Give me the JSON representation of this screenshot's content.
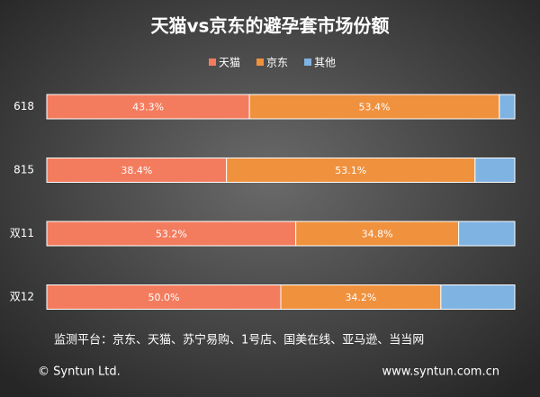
{
  "chart_data": {
    "type": "stacked-bar-horizontal",
    "title": "天猫vs京东的避孕套市场份额",
    "categories": [
      "618",
      "815",
      "双11",
      "双12"
    ],
    "series": [
      {
        "name": "天猫",
        "color": "#f47c5e",
        "values": [
          43.3,
          38.4,
          53.2,
          50.0
        ],
        "value_labels": [
          "43.3%",
          "38.4%",
          "53.2%",
          "50.0%"
        ]
      },
      {
        "name": "京东",
        "color": "#f0913d",
        "values": [
          53.4,
          53.1,
          34.8,
          34.2
        ],
        "value_labels": [
          "53.4%",
          "53.1%",
          "34.8%",
          "34.2%"
        ]
      },
      {
        "name": "其他",
        "color": "#7fb3e2",
        "values": [
          3.3,
          8.5,
          12.0,
          15.8
        ]
      }
    ],
    "xlim": [
      0,
      100
    ],
    "legend": "top",
    "source": "监测平台：京东、天猫、苏宁易购、1号店、国美在线、亚马逊、当当网",
    "credits": [
      "© Syntun Ltd.",
      "www.syntun.com.cn"
    ]
  }
}
